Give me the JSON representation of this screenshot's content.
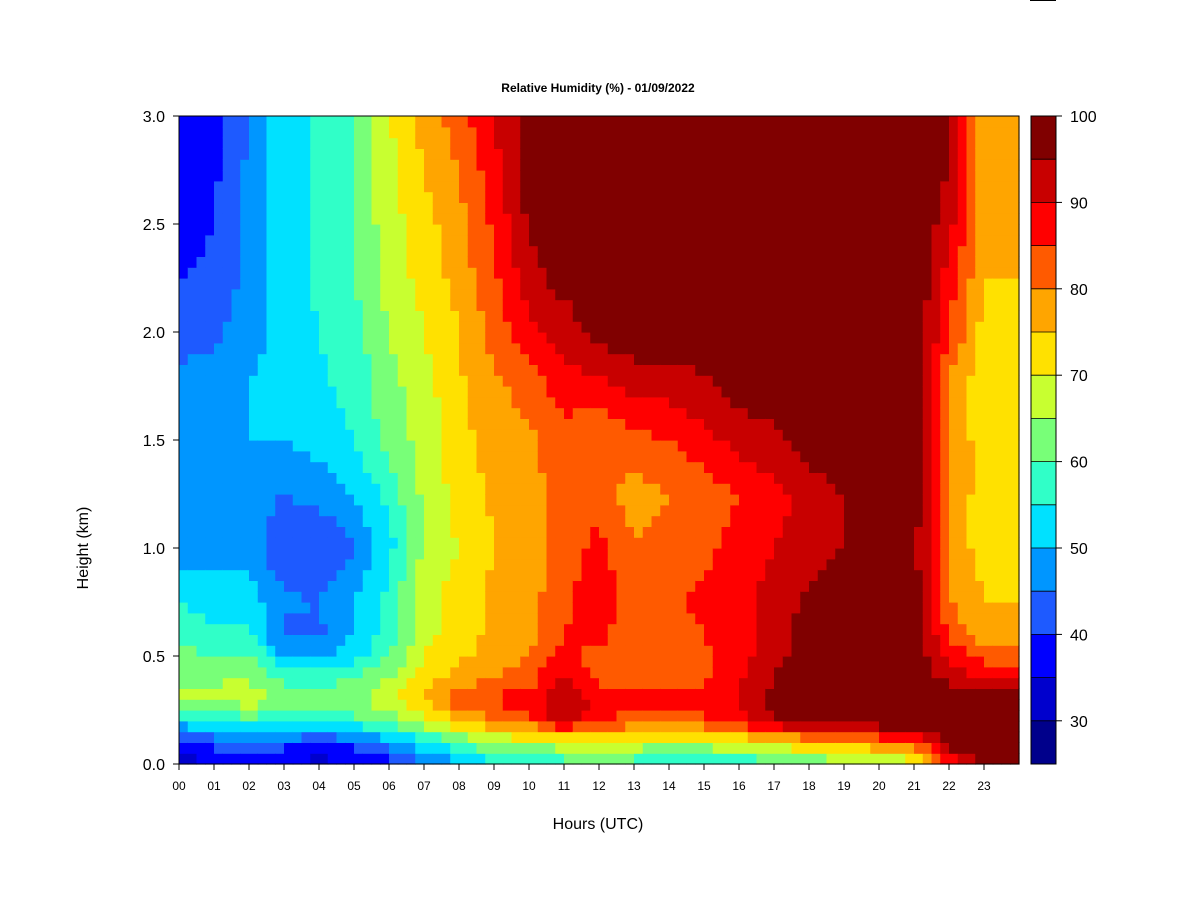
{
  "chart_data": {
    "type": "heatmap",
    "title": "Relative Humidity (%) - 01/09/2022",
    "xlabel": "Hours (UTC)",
    "ylabel": "Height (km)",
    "xlim": [
      0,
      24
    ],
    "ylim": [
      0,
      3
    ],
    "x_ticks": [
      0,
      1,
      2,
      3,
      4,
      5,
      6,
      7,
      8,
      9,
      10,
      11,
      12,
      13,
      14,
      15,
      16,
      17,
      18,
      19,
      20,
      21,
      22,
      23
    ],
    "x_tick_labels": [
      "00",
      "01",
      "02",
      "03",
      "04",
      "05",
      "06",
      "07",
      "08",
      "09",
      "10",
      "11",
      "12",
      "13",
      "14",
      "15",
      "16",
      "17",
      "18",
      "19",
      "20",
      "21",
      "22",
      "23"
    ],
    "y_ticks": [
      0.0,
      0.5,
      1.0,
      1.5,
      2.0,
      2.5,
      3.0
    ],
    "y_tick_labels": [
      "0.0",
      "0.5",
      "1.0",
      "1.5",
      "2.0",
      "2.5",
      "3.0"
    ],
    "colorbar": {
      "min": 25,
      "max": 100,
      "step": 5,
      "tick_values": [
        30,
        40,
        50,
        60,
        70,
        80,
        90,
        100
      ],
      "tick_labels": [
        "30",
        "40",
        "50",
        "60",
        "70",
        "80",
        "90",
        "100"
      ],
      "colors": [
        "#00008b",
        "#0000cd",
        "#0000ff",
        "#1e5aff",
        "#0096ff",
        "#00e1ff",
        "#30ffc8",
        "#78ff78",
        "#c8ff30",
        "#ffe100",
        "#ffa500",
        "#ff5a00",
        "#ff0000",
        "#c80000",
        "#800000"
      ]
    },
    "heights_km": [
      0.0,
      0.1,
      0.2,
      0.3,
      0.4,
      0.5,
      0.6,
      0.75,
      1.0,
      1.25,
      1.5,
      1.75,
      2.0,
      2.25,
      2.5,
      2.75,
      3.0
    ],
    "hours": [
      0,
      1,
      2,
      3,
      4,
      5,
      6,
      7,
      8,
      9,
      10,
      11,
      12,
      13,
      14,
      15,
      16,
      17,
      18,
      19,
      20,
      21,
      22,
      23
    ],
    "values": [
      [
        33,
        40,
        52,
        67,
        63,
        62,
        58,
        55,
        48,
        45,
        46,
        47,
        42,
        40,
        38,
        38,
        37
      ],
      [
        33,
        42,
        55,
        67,
        64,
        60,
        56,
        53,
        47,
        47,
        48,
        48,
        44,
        41,
        40,
        39,
        38
      ],
      [
        35,
        45,
        58,
        68,
        65,
        60,
        56,
        53,
        48,
        48,
        50,
        50,
        48,
        47,
        47,
        46,
        45
      ],
      [
        34,
        42,
        57,
        64,
        58,
        50,
        44,
        46,
        40,
        45,
        50,
        52,
        52,
        53,
        53,
        53,
        53
      ],
      [
        33,
        40,
        57,
        63,
        58,
        50,
        44,
        45,
        40,
        47,
        52,
        54,
        55,
        56,
        56,
        56,
        56
      ],
      [
        34,
        42,
        58,
        64,
        60,
        53,
        50,
        50,
        44,
        50,
        55,
        57,
        58,
        60,
        60,
        60,
        60
      ],
      [
        37,
        47,
        62,
        68,
        65,
        60,
        57,
        57,
        53,
        57,
        62,
        63,
        65,
        67,
        68,
        68,
        70
      ],
      [
        45,
        53,
        68,
        76,
        72,
        70,
        68,
        68,
        66,
        66,
        67,
        68,
        70,
        72,
        73,
        75,
        77
      ],
      [
        48,
        60,
        75,
        83,
        77,
        74,
        73,
        73,
        70,
        72,
        73,
        74,
        75,
        77,
        78,
        80,
        83
      ],
      [
        53,
        65,
        80,
        86,
        80,
        77,
        76,
        76,
        75,
        76,
        78,
        79,
        82,
        84,
        86,
        88,
        90
      ],
      [
        55,
        67,
        83,
        88,
        82,
        80,
        78,
        78,
        77,
        78,
        79,
        82,
        88,
        93,
        96,
        97,
        98
      ],
      [
        57,
        68,
        93,
        96,
        92,
        88,
        85,
        84,
        82,
        82,
        83,
        88,
        92,
        97,
        98,
        99,
        99
      ],
      [
        60,
        70,
        85,
        88,
        83,
        82,
        87,
        88,
        87,
        82,
        80,
        88,
        97,
        99,
        100,
        100,
        100
      ],
      [
        57,
        68,
        83,
        86,
        82,
        80,
        81,
        82,
        80,
        78,
        83,
        92,
        98,
        100,
        100,
        100,
        100
      ],
      [
        55,
        67,
        83,
        86,
        82,
        82,
        83,
        84,
        82,
        80,
        85,
        92,
        98,
        100,
        100,
        100,
        100
      ],
      [
        55,
        68,
        84,
        87,
        84,
        84,
        85,
        86,
        84,
        82,
        88,
        94,
        99,
        100,
        100,
        100,
        100
      ],
      [
        55,
        70,
        88,
        91,
        89,
        88,
        88,
        88,
        87,
        85,
        92,
        97,
        100,
        100,
        100,
        100,
        100
      ],
      [
        58,
        72,
        95,
        97,
        95,
        93,
        92,
        92,
        90,
        88,
        94,
        98,
        100,
        100,
        100,
        100,
        100
      ],
      [
        60,
        75,
        99,
        100,
        99,
        98,
        98,
        96,
        93,
        92,
        98,
        100,
        100,
        100,
        100,
        100,
        100
      ],
      [
        62,
        77,
        99,
        100,
        100,
        100,
        99,
        98,
        95,
        95,
        99,
        100,
        100,
        100,
        100,
        100,
        100
      ],
      [
        63,
        80,
        100,
        100,
        100,
        100,
        99,
        98,
        96,
        97,
        100,
        100,
        100,
        100,
        100,
        100,
        100
      ],
      [
        68,
        82,
        100,
        100,
        100,
        100,
        99,
        98,
        97,
        98,
        100,
        100,
        100,
        100,
        100,
        100,
        100
      ],
      [
        85,
        98,
        100,
        99,
        93,
        88,
        84,
        80,
        78,
        80,
        80,
        78,
        85,
        88,
        92,
        95,
        95
      ],
      [
        98,
        100,
        100,
        99,
        90,
        83,
        78,
        75,
        73,
        72,
        72,
        72,
        73,
        75,
        76,
        77,
        77
      ]
    ]
  }
}
